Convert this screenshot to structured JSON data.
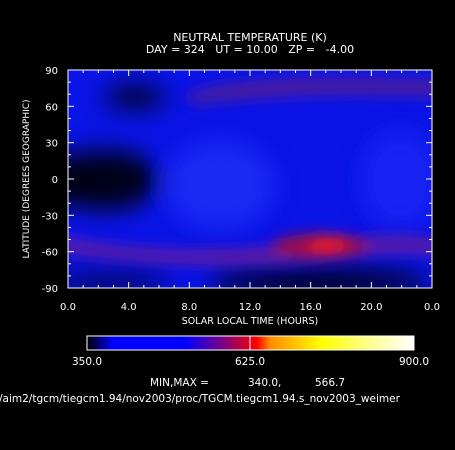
{
  "chart_data": {
    "type": "heatmap",
    "title": "NEUTRAL TEMPERATURE (K)",
    "subtitle": "DAY = 324   UT = 10.00   ZP =   -4.00",
    "xlabel": "SOLAR LOCAL TIME (HOURS)",
    "ylabel": "LATITUDE (DEGREES GEOGRAPHIC)",
    "xlim": [
      0,
      24
    ],
    "ylim": [
      -90,
      90
    ],
    "x_ticks": [
      "0.0",
      "4.0",
      "8.0",
      "12.0",
      "16.0",
      "20.0",
      "0.0"
    ],
    "y_ticks": [
      "-90",
      "-60",
      "-30",
      "0",
      "30",
      "60",
      "90"
    ],
    "colorbar": {
      "min_label": "350.0",
      "mid_label": "625.0",
      "max_label": "900.0",
      "range": [
        350,
        900
      ],
      "stops": [
        "#000000",
        "#0000ff",
        "#0000ff",
        "#800080",
        "#ff0000",
        "#ff8c00",
        "#ffff00",
        "#ffffa0",
        "#ffffff"
      ]
    },
    "minmax": {
      "label": "MIN,MAX =",
      "min": "340.0,",
      "max": "566.7"
    },
    "field_features": [
      {
        "lt": 16.7,
        "lat": -58,
        "value": 560,
        "note": "southern hot spot"
      },
      {
        "lt": 3.0,
        "lat": 0,
        "value": 350,
        "note": "equatorial minimum"
      },
      {
        "lt": 16.0,
        "lat": -82,
        "value": 345,
        "note": "polar minimum"
      },
      {
        "lt": 12.5,
        "lat": 80,
        "value": 470,
        "note": "northern band"
      }
    ]
  },
  "footer": {
    "path": "/aim2/tgcm/tiegcm1.94/nov2003/proc/TGCM.tiegcm1.94.s_nov2003_weimer"
  },
  "colors": {
    "background": "#000000",
    "text": "#ffffff"
  }
}
